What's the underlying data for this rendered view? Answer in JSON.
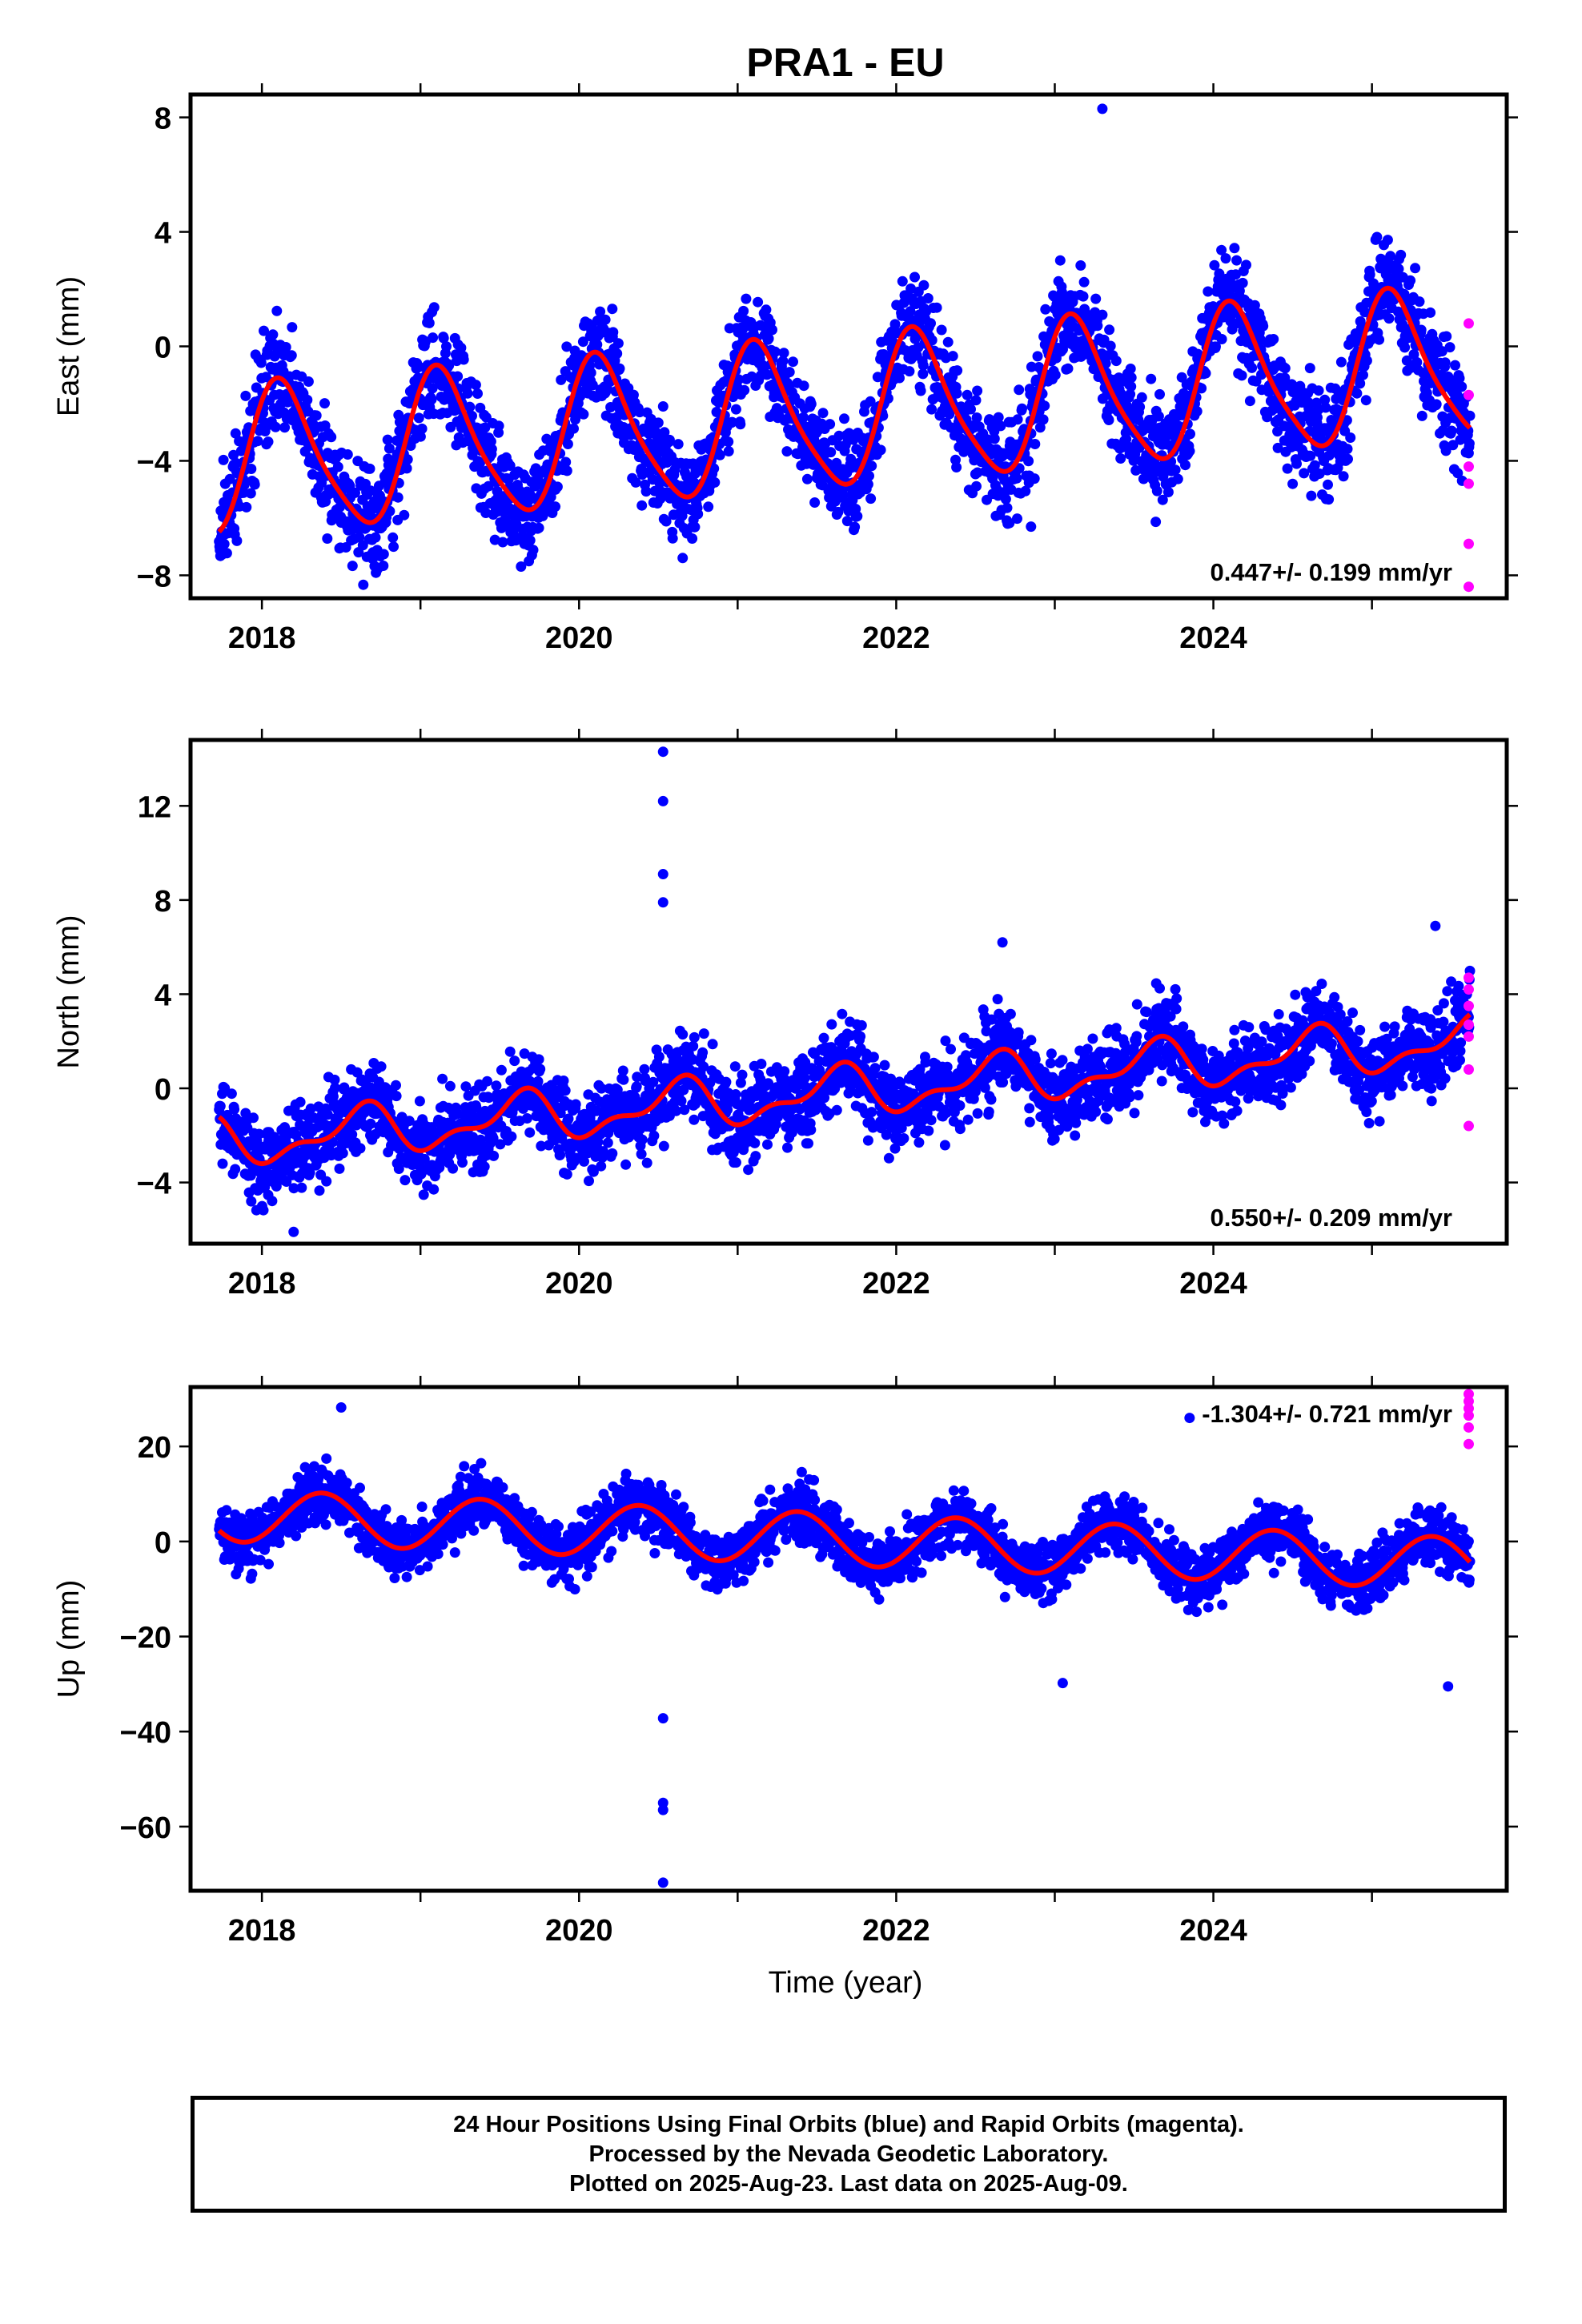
{
  "title": "PRA1 - EU",
  "chart_data": [
    {
      "type": "scatter",
      "ylabel": "East (mm)",
      "xlabel": "",
      "xlim": [
        2017.55,
        2025.85
      ],
      "ylim": [
        -8.8,
        8.8
      ],
      "yticks": [
        -8,
        -4,
        0,
        4,
        8
      ],
      "xticks": [
        2018,
        2020,
        2022,
        2024
      ],
      "xminor": [
        2017,
        2019,
        2021,
        2023,
        2025
      ],
      "annotation": "0.447+/- 0.199 mm/yr",
      "annotation_position": "bottom-right",
      "colors": {
        "final": "#0000ff",
        "rapid": "#ff00ff",
        "fit": "#ff0000"
      },
      "model": {
        "start": 2017.73,
        "end": 2025.62,
        "y0": -2.4,
        "slope": 0.447,
        "ref_year": 2021.6,
        "annual_amp": 2.55,
        "annual_phase": 0.13,
        "semiannual_amp": 0.45,
        "semiannual_phase": 0.55
      },
      "rapid_points": [
        [
          2025.6,
          0.8
        ],
        [
          2025.6,
          -1.7
        ],
        [
          2025.6,
          -4.2
        ],
        [
          2025.6,
          -4.8
        ],
        [
          2025.6,
          -6.9
        ],
        [
          2025.6,
          -8.4
        ]
      ],
      "outliers": [
        [
          2018.83,
          -7.0
        ],
        [
          2023.3,
          8.3
        ],
        [
          2022.85,
          -6.3
        ],
        [
          2019.85,
          -5.6
        ]
      ]
    },
    {
      "type": "scatter",
      "ylabel": "North (mm)",
      "xlabel": "",
      "xlim": [
        2017.55,
        2025.85
      ],
      "ylim": [
        -6.6,
        14.8
      ],
      "yticks": [
        -4,
        0,
        4,
        8,
        12
      ],
      "xticks": [
        2018,
        2020,
        2022,
        2024
      ],
      "xminor": [
        2017,
        2019,
        2021,
        2023,
        2025
      ],
      "annotation": "0.550+/- 0.209 mm/yr",
      "annotation_position": "bottom-right",
      "colors": {
        "final": "#0000ff",
        "rapid": "#ff00ff",
        "fit": "#ff0000"
      },
      "model": {
        "start": 2017.73,
        "end": 2025.62,
        "y0": -0.2,
        "slope": 0.55,
        "ref_year": 2021.6,
        "annual_amp": 0.9,
        "annual_phase": 0.62,
        "semiannual_amp": 0.45,
        "semiannual_phase": 0.2
      },
      "rapid_points": [
        [
          2025.6,
          4.7
        ],
        [
          2025.6,
          4.2
        ],
        [
          2025.6,
          3.5
        ],
        [
          2025.6,
          2.7
        ],
        [
          2025.6,
          2.2
        ],
        [
          2025.6,
          0.8
        ],
        [
          2025.6,
          -1.6
        ]
      ],
      "outliers": [
        [
          2020.53,
          14.3
        ],
        [
          2020.53,
          12.2
        ],
        [
          2020.53,
          9.1
        ],
        [
          2020.53,
          7.9
        ],
        [
          2022.67,
          6.2
        ],
        [
          2025.4,
          6.9
        ],
        [
          2018.2,
          -6.1
        ]
      ]
    },
    {
      "type": "scatter",
      "ylabel": "Up (mm)",
      "xlabel": "Time (year)",
      "xlim": [
        2017.55,
        2025.85
      ],
      "ylim": [
        -73.5,
        32.5
      ],
      "yticks": [
        -60,
        -40,
        -20,
        0,
        20
      ],
      "xticks": [
        2018,
        2020,
        2022,
        2024
      ],
      "xminor": [
        2017,
        2019,
        2021,
        2023,
        2025
      ],
      "annotation": "-1.304+/- 0.721 mm/yr",
      "annotation_position": "top-right",
      "colors": {
        "final": "#0000ff",
        "rapid": "#ff00ff",
        "fit": "#ff0000"
      },
      "model": {
        "start": 2017.73,
        "end": 2025.62,
        "y0": 0.5,
        "slope": -1.304,
        "ref_year": 2021.6,
        "annual_amp": 5.5,
        "annual_phase": 0.38,
        "semiannual_amp": 0.0,
        "semiannual_phase": 0.0
      },
      "rapid_points": [
        [
          2025.6,
          31
        ],
        [
          2025.6,
          29.5
        ],
        [
          2025.6,
          28
        ],
        [
          2025.6,
          26.5
        ],
        [
          2025.6,
          24
        ],
        [
          2025.6,
          20.5
        ]
      ],
      "outliers": [
        [
          2020.53,
          -37.2
        ],
        [
          2020.53,
          -55.0
        ],
        [
          2020.53,
          -56.5
        ],
        [
          2020.53,
          -71.8
        ],
        [
          2018.5,
          28.2
        ],
        [
          2023.05,
          -29.8
        ],
        [
          2025.48,
          -30.5
        ],
        [
          2023.85,
          26
        ]
      ]
    }
  ],
  "footer": {
    "line1": "24 Hour Positions Using Final Orbits (blue) and Rapid Orbits (magenta).",
    "line2": "Processed by the Nevada Geodetic Laboratory.",
    "line3": "Plotted on 2025-Aug-23. Last data on 2025-Aug-09."
  }
}
